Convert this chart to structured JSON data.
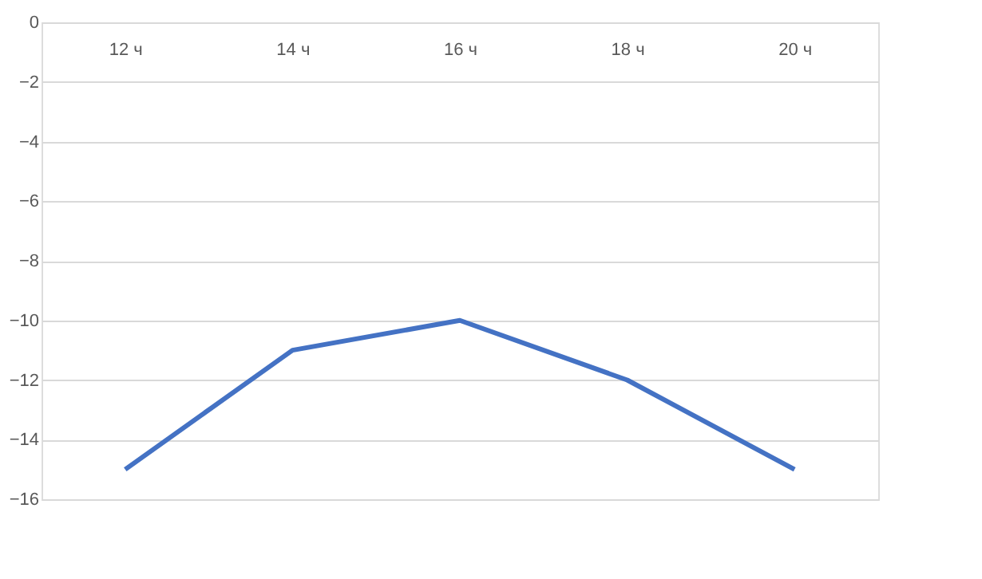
{
  "chart_data": {
    "type": "line",
    "categories": [
      "12 ч",
      "14 ч",
      "16 ч",
      "18 ч",
      "20 ч"
    ],
    "series": [
      {
        "color": "#4472c4",
        "values": [
          -15,
          -11,
          -10,
          -12,
          -15
        ]
      }
    ],
    "ylim": [
      -16,
      0
    ],
    "yticks": [
      -16,
      -14,
      -12,
      -10,
      -8,
      -6,
      -4,
      -2,
      0
    ],
    "grid": "y",
    "legend": false,
    "marker": "none",
    "line_style": "solid"
  }
}
